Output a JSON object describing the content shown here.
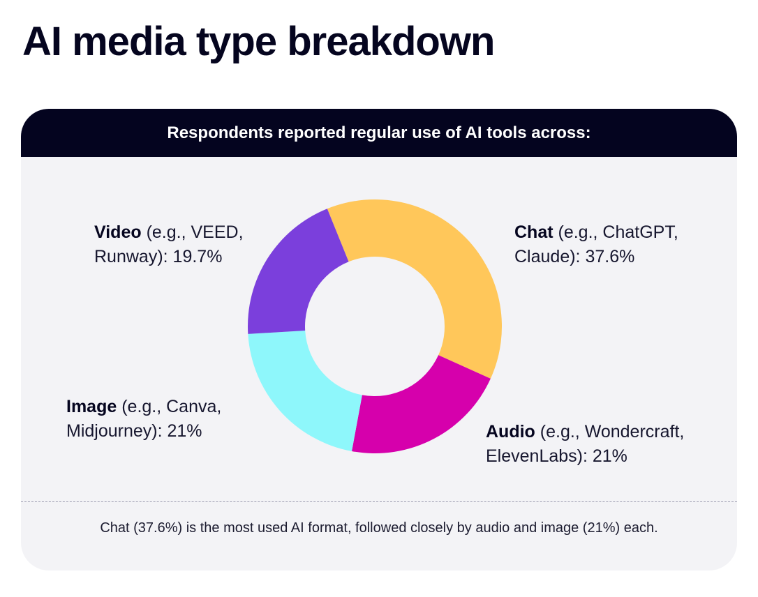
{
  "title": "AI media type breakdown",
  "card": {
    "header": "Respondents reported regular use of AI tools across:",
    "footer": "Chat (37.6%) is the most used AI format, followed closely by audio and image (21%) each."
  },
  "chart_data": {
    "type": "pie",
    "donut": true,
    "slices": [
      {
        "name": "Chat",
        "detail": " (e.g., ChatGPT,",
        "detail2": "Claude): 37.6%",
        "value": 37.6,
        "color": "#ffc75a"
      },
      {
        "name": "Audio",
        "detail": " (e.g., Wondercraft,",
        "detail2": "ElevenLabs): 21%",
        "value": 21,
        "color": "#d600ac"
      },
      {
        "name": "Image",
        "detail": " (e.g., Canva,",
        "detail2": "Midjourney): 21%",
        "value": 21,
        "color": "#8ef7fb"
      },
      {
        "name": "Video",
        "detail": " (e.g., VEED,",
        "detail2": "Runway): 19.7%",
        "value": 19.7,
        "color": "#7b3fdc"
      }
    ],
    "start_angle_deg": -22
  }
}
